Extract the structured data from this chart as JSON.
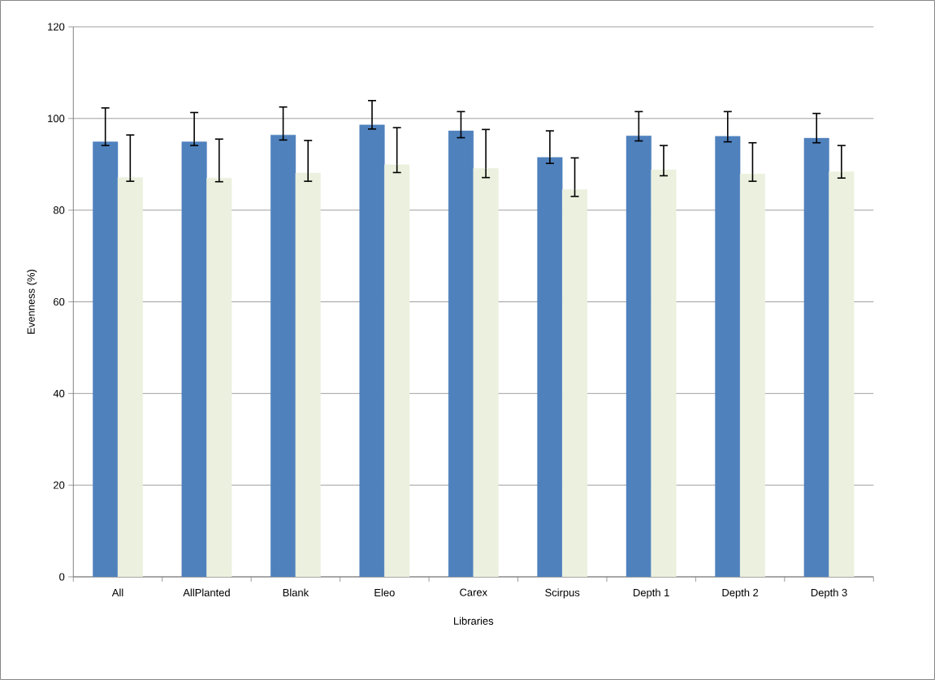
{
  "chart_data": {
    "type": "bar",
    "xlabel": "Libraries",
    "ylabel": "Evenness (%)",
    "categories": [
      "All",
      "AllPlanted",
      "Blank",
      "Eleo",
      "Carex",
      "Scirpus",
      "Depth 1",
      "Depth 2",
      "Depth 3"
    ],
    "series": [
      {
        "color": "#4f81bd",
        "values": [
          94.9,
          94.9,
          96.4,
          98.6,
          97.3,
          91.5,
          96.2,
          96.1,
          95.7
        ],
        "errors": [
          [
            94.1,
            102.3
          ],
          [
            94.1,
            101.3
          ],
          [
            95.3,
            102.5
          ],
          [
            97.7,
            103.9
          ],
          [
            95.8,
            101.5
          ],
          [
            90.2,
            97.3
          ],
          [
            95.1,
            101.5
          ],
          [
            94.9,
            101.5
          ],
          [
            94.7,
            101.1
          ]
        ]
      },
      {
        "color": "#ebf1de",
        "values": [
          87.1,
          87.0,
          88.1,
          89.9,
          89.1,
          84.5,
          88.8,
          87.9,
          88.4
        ],
        "errors": [
          [
            86.3,
            96.4
          ],
          [
            86.2,
            95.5
          ],
          [
            86.3,
            95.2
          ],
          [
            88.2,
            98.0
          ],
          [
            87.1,
            97.6
          ],
          [
            83.0,
            91.4
          ],
          [
            87.5,
            94.1
          ],
          [
            86.3,
            94.7
          ],
          [
            87.0,
            94.1
          ]
        ]
      }
    ],
    "ylim": [
      0,
      120
    ],
    "yticks": [
      0,
      20,
      40,
      60,
      80,
      100,
      120
    ],
    "grid": "y"
  }
}
